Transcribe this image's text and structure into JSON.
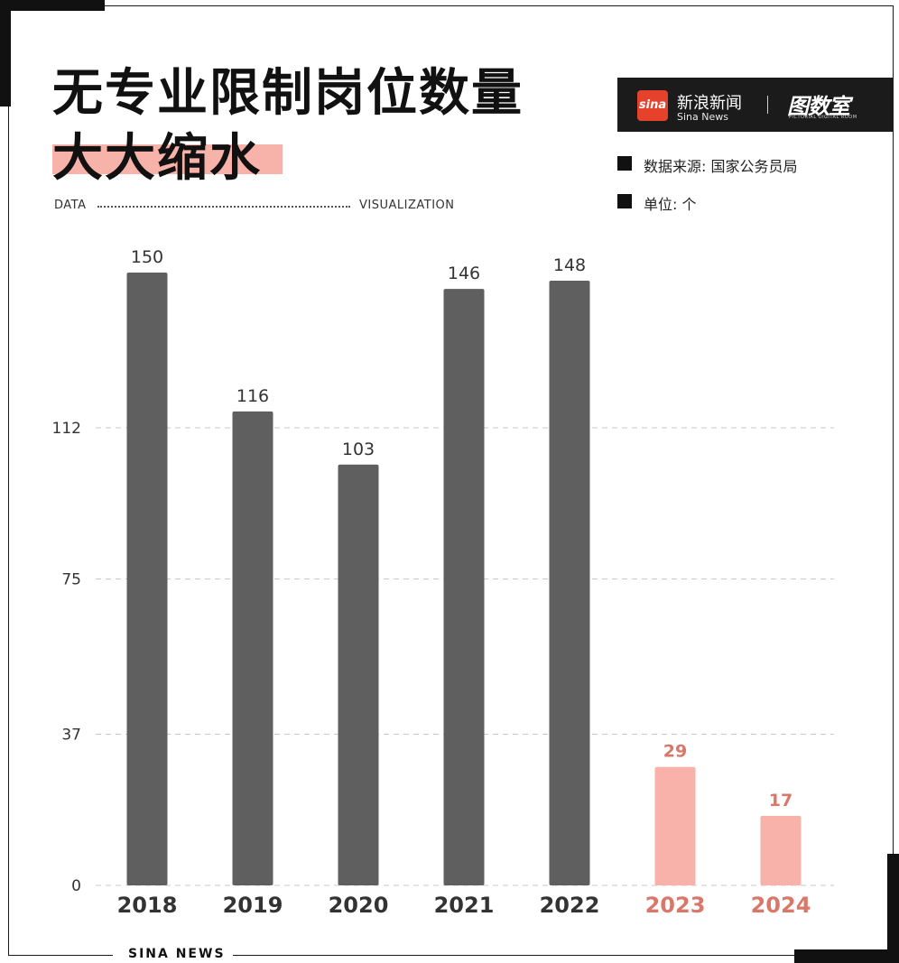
{
  "header": {
    "title_line1": "无专业限制岗位数量",
    "title_line2": "大大缩水",
    "left_tag": "DATA",
    "right_tag": "VISUALIZATION"
  },
  "logo": {
    "badge": "sina",
    "name_cn": "新浪新闻",
    "name_en": "Sina News",
    "divider": "|",
    "room_cn": "图数室",
    "room_en": "PICTORIAL DIGITAL ROOM"
  },
  "meta": {
    "source": "数据来源: 国家公务员局",
    "unit": "单位: 个"
  },
  "footer": {
    "brand": "SINA  NEWS"
  },
  "colors": {
    "main_bar": "#5f5f5f",
    "highlight_bar": "#f9b2a9",
    "highlight_text": "#d9776a",
    "text": "#333333"
  },
  "chart_data": {
    "type": "bar",
    "categories": [
      "2018",
      "2019",
      "2020",
      "2021",
      "2022",
      "2023",
      "2024"
    ],
    "values": [
      150,
      116,
      103,
      146,
      148,
      29,
      17
    ],
    "highlighted": [
      false,
      false,
      false,
      false,
      false,
      true,
      true
    ],
    "yticks": [
      0,
      37,
      75,
      112
    ],
    "ylim": [
      0,
      150
    ],
    "grid": true,
    "title": "无专业限制岗位数量大大缩水",
    "xlabel": "",
    "ylabel": ""
  }
}
